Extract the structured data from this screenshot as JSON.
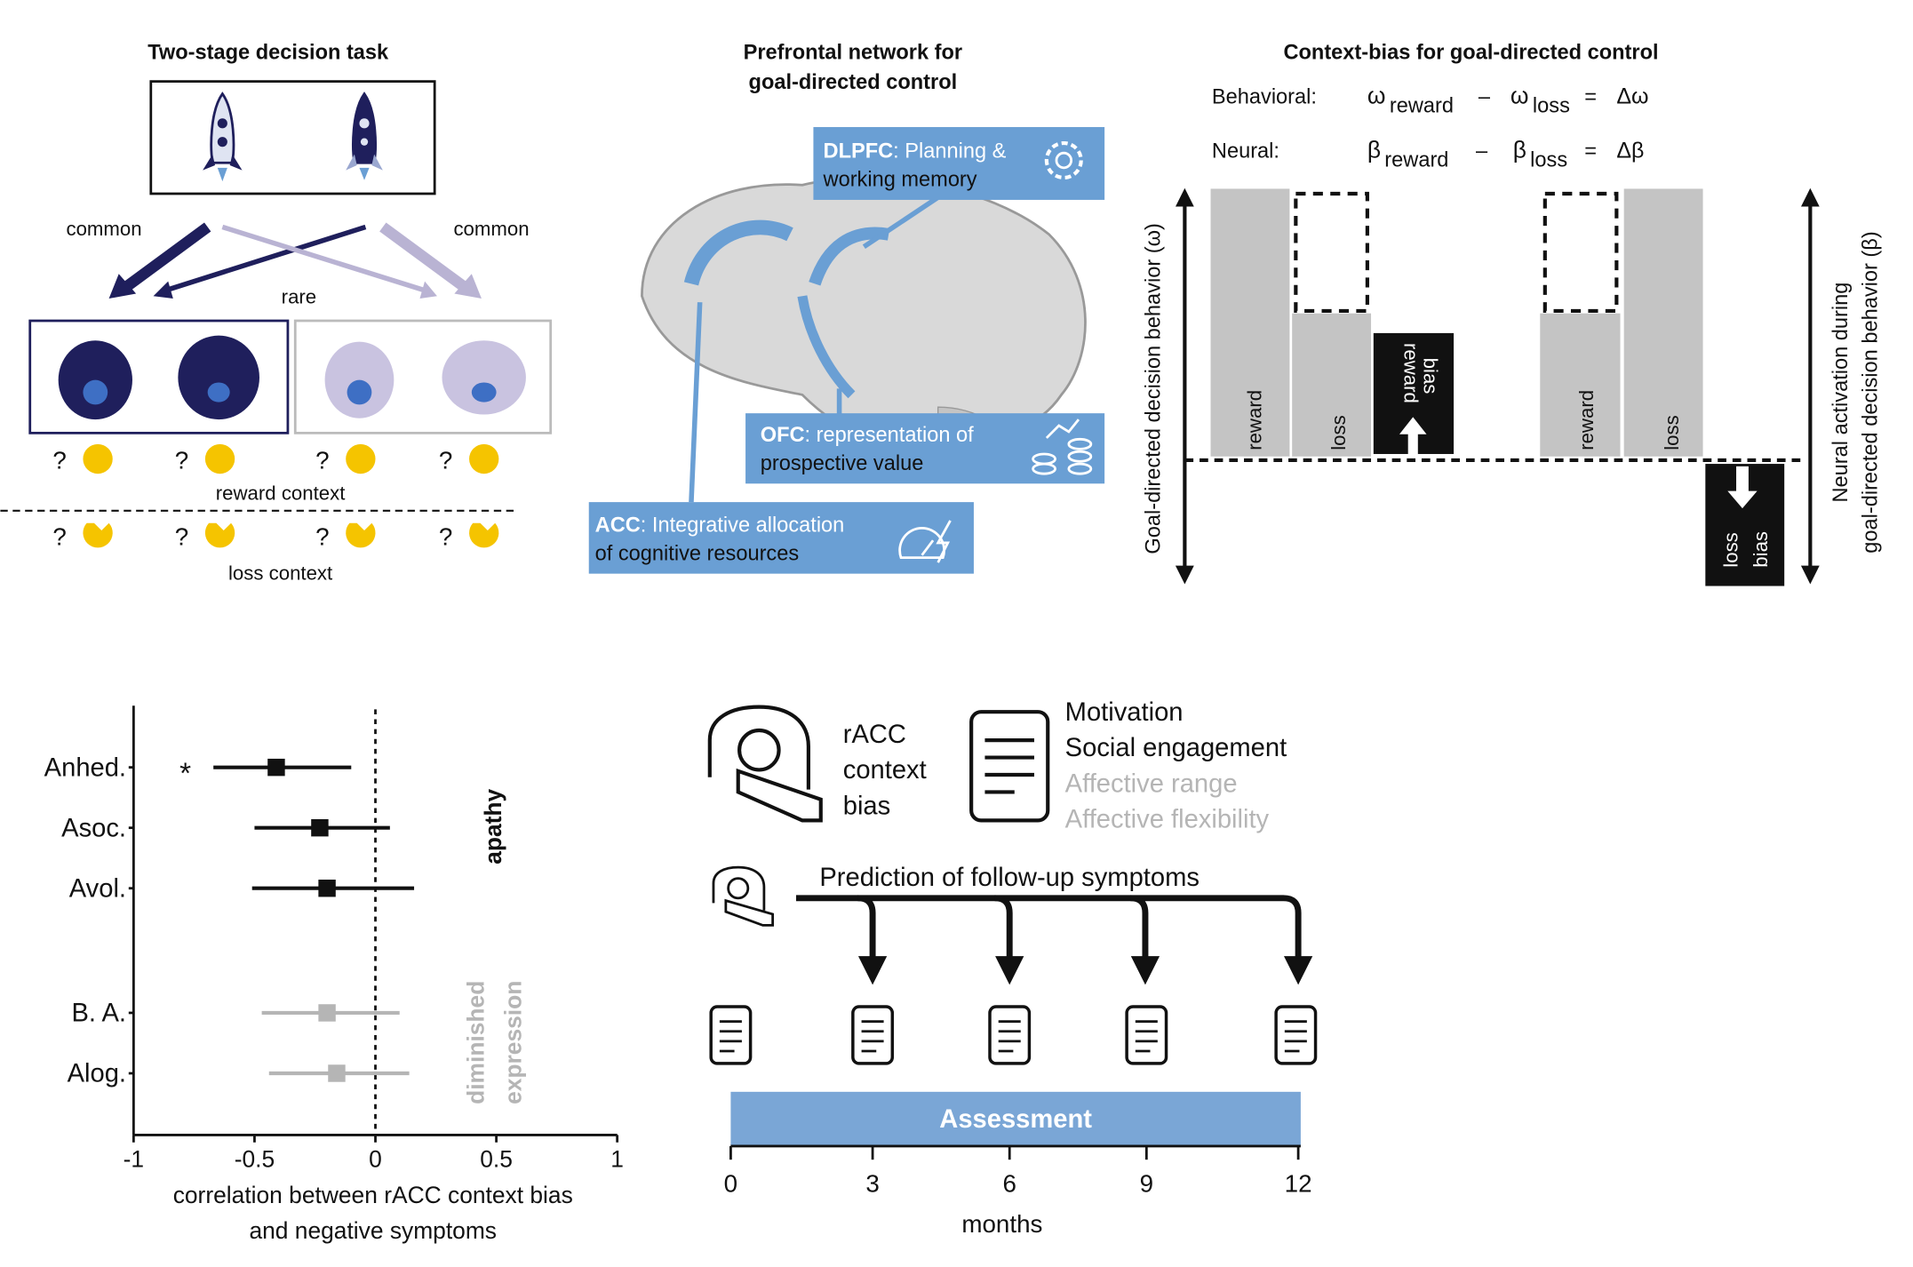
{
  "panel_task": {
    "title": "Two-stage decision task",
    "common_left": "common",
    "common_right": "common",
    "rare": "rare",
    "question": "?",
    "reward_context": "reward context",
    "loss_context": "loss context",
    "colors": {
      "dark": "#1f1f5c",
      "light": "#b9b3d3",
      "coin": "#f5c400"
    }
  },
  "panel_network": {
    "title_line1": "Prefrontal network for",
    "title_line2": "goal-directed control",
    "dlpfc": {
      "abbr": "DLPFC",
      "line1": ": Planning &",
      "line2": "working memory",
      "icon": "gear-icon"
    },
    "ofc": {
      "abbr": "OFC",
      "line1": ": representation of",
      "line2": "prospective value",
      "icon": "coins-icon"
    },
    "acc": {
      "abbr": "ACC",
      "line1": ": Integrative allocation",
      "line2": "of cognitive resources",
      "icon": "speedometer-icon"
    },
    "box_color": "#6a9fd4"
  },
  "panel_bias": {
    "title": "Context-bias for goal-directed control",
    "behavioral_label": "Behavioral:",
    "neural_label": "Neural:",
    "omega": "ω",
    "beta": "β",
    "sub_reward": "reward",
    "sub_loss": "loss",
    "minus": "–",
    "equals": "=",
    "delta_omega": "Δω",
    "delta_beta": "Δβ",
    "left_axis": "Goal-directed decision behavior (ω)",
    "right_axis_line1": "Neural activation during",
    "right_axis_line2": "goal-directed decision behavior (β)",
    "bar_reward": "reward",
    "bar_loss": "loss",
    "reward_bias_1": "reward",
    "reward_bias_2": "bias",
    "loss_bias_1": "loss",
    "loss_bias_2": "bias"
  },
  "chart_data": {
    "type": "scatter",
    "subtype": "forest",
    "categories": [
      "Anhed.",
      "Asoc.",
      "Avol.",
      "B. A.",
      "Alog."
    ],
    "estimates": [
      -0.41,
      -0.23,
      -0.2,
      -0.2,
      -0.16
    ],
    "ci_low": [
      -0.67,
      -0.5,
      -0.51,
      -0.47,
      -0.44
    ],
    "ci_high": [
      -0.1,
      0.06,
      0.16,
      0.1,
      0.14
    ],
    "significant": [
      true,
      false,
      false,
      false,
      false
    ],
    "significance_marker": "*",
    "groups": [
      {
        "name": "apathy",
        "members": [
          "Anhed.",
          "Asoc.",
          "Avol."
        ],
        "color": "#111111"
      },
      {
        "name_line1": "diminished",
        "name_line2": "expression",
        "members": [
          "B. A.",
          "Alog."
        ],
        "color": "#b5b5b5"
      }
    ],
    "xlim": [
      -1,
      1
    ],
    "xticks": [
      "-1",
      "-0.5",
      "0",
      "0.5",
      "1"
    ],
    "xlabel_line1": "correlation between rACC context bias",
    "xlabel_line2": "and negative symptoms",
    "reference_line": 0
  },
  "panel_prediction": {
    "racc_1": "rACC",
    "racc_2": "context",
    "racc_3": "bias",
    "measures": [
      "Motivation",
      "Social engagement",
      "Affective range",
      "Affective flexibility"
    ],
    "measure_colors": [
      "#111111",
      "#111111",
      "#b5b5b5",
      "#b5b5b5"
    ],
    "prediction_label": "Prediction of follow-up symptoms",
    "assessment": "Assessment",
    "assessment_color": "#7aa6d6",
    "months": [
      "0",
      "3",
      "6",
      "9",
      "12"
    ],
    "months_label": "months"
  }
}
